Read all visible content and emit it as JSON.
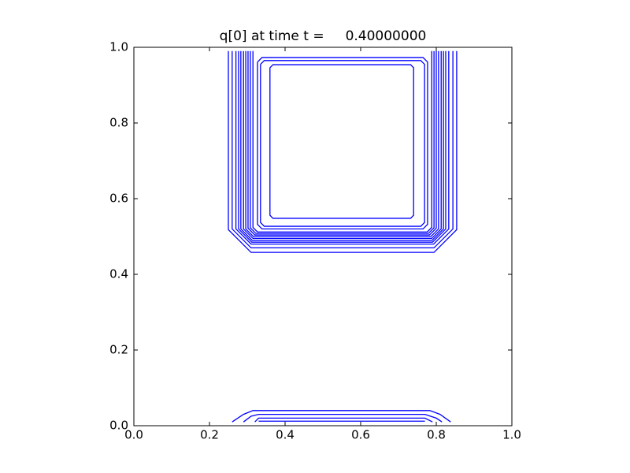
{
  "chart_data": {
    "type": "contour",
    "title": "q[0] at time t =     0.40000000",
    "xlim": [
      0,
      1
    ],
    "ylim": [
      0,
      1
    ],
    "xticks": [
      {
        "value": 0,
        "label": "0.0"
      },
      0.2,
      0.4,
      0.6,
      0.8,
      {
        "value": 1,
        "label": "1.0"
      }
    ],
    "yticks": [
      {
        "value": 0,
        "label": "0.0"
      },
      0.2,
      0.4,
      0.6,
      0.8,
      {
        "value": 1,
        "label": "1.0"
      }
    ],
    "series": [
      {
        "color": "#0000ff",
        "x": [
          0.25,
          0.25,
          0.31,
          0.794,
          0.854,
          0.854
        ],
        "y": [
          0.99,
          0.518,
          0.458,
          0.458,
          0.518,
          0.99
        ]
      },
      {
        "color": "#0000ff",
        "x": [
          0.26,
          0.26,
          0.31,
          0.794,
          0.844,
          0.844
        ],
        "y": [
          0.99,
          0.52,
          0.47,
          0.47,
          0.52,
          0.99
        ]
      },
      {
        "color": "#0000ff",
        "x": [
          0.27,
          0.27,
          0.31,
          0.793,
          0.833,
          0.833
        ],
        "y": [
          0.99,
          0.52,
          0.48,
          0.48,
          0.52,
          0.99
        ]
      },
      {
        "color": "#0000ff",
        "x": [
          0.277,
          0.277,
          0.312,
          0.79,
          0.825,
          0.825
        ],
        "y": [
          0.99,
          0.52,
          0.485,
          0.485,
          0.52,
          0.99
        ]
      },
      {
        "color": "#0000ff",
        "x": [
          0.283,
          0.283,
          0.313,
          0.789,
          0.819,
          0.819
        ],
        "y": [
          0.99,
          0.52,
          0.49,
          0.49,
          0.52,
          0.99
        ]
      },
      {
        "color": "#0000ff",
        "x": [
          0.29,
          0.29,
          0.315,
          0.788,
          0.813,
          0.813
        ],
        "y": [
          0.99,
          0.52,
          0.495,
          0.495,
          0.52,
          0.99
        ]
      },
      {
        "color": "#0000ff",
        "x": [
          0.296,
          0.296,
          0.316,
          0.786,
          0.806,
          0.806
        ],
        "y": [
          0.99,
          0.52,
          0.5,
          0.5,
          0.52,
          0.99
        ]
      },
      {
        "color": "#0000ff",
        "x": [
          0.302,
          0.302,
          0.32,
          0.782,
          0.8,
          0.8
        ],
        "y": [
          0.99,
          0.522,
          0.504,
          0.504,
          0.522,
          0.99
        ]
      },
      {
        "color": "#0000ff",
        "x": [
          0.308,
          0.308,
          0.323,
          0.779,
          0.794,
          0.794
        ],
        "y": [
          0.99,
          0.523,
          0.508,
          0.508,
          0.523,
          0.99
        ]
      },
      {
        "color": "#0000ff",
        "x": [
          0.315,
          0.315,
          0.327,
          0.776,
          0.788,
          0.788
        ],
        "y": [
          0.99,
          0.524,
          0.512,
          0.512,
          0.524,
          0.99
        ]
      },
      {
        "color": "#0000ff",
        "x": [
          0.327,
          0.327,
          0.339,
          0.765,
          0.777,
          0.777,
          0.765,
          0.339,
          0.327
        ],
        "y": [
          0.961,
          0.532,
          0.52,
          0.52,
          0.532,
          0.961,
          0.973,
          0.973,
          0.961
        ]
      },
      {
        "color": "#0000ff",
        "x": [
          0.335,
          0.335,
          0.345,
          0.759,
          0.769,
          0.769,
          0.759,
          0.345,
          0.335
        ],
        "y": [
          0.955,
          0.537,
          0.527,
          0.527,
          0.537,
          0.955,
          0.965,
          0.965,
          0.955
        ]
      },
      {
        "color": "#0000ff",
        "x": [
          0.36,
          0.36,
          0.368,
          0.732,
          0.74,
          0.74,
          0.732,
          0.368,
          0.36
        ],
        "y": [
          0.946,
          0.556,
          0.548,
          0.548,
          0.556,
          0.946,
          0.954,
          0.954,
          0.946
        ]
      },
      {
        "color": "#0000ff",
        "x": [
          0.26,
          0.29,
          0.315,
          0.783,
          0.81,
          0.838
        ],
        "y": [
          0.01,
          0.03,
          0.04,
          0.04,
          0.03,
          0.01
        ]
      },
      {
        "color": "#0000ff",
        "x": [
          0.29,
          0.31,
          0.33,
          0.77,
          0.8,
          0.815
        ],
        "y": [
          0.01,
          0.025,
          0.03,
          0.03,
          0.02,
          0.01
        ]
      },
      {
        "color": "#0000ff",
        "x": [
          0.32,
          0.33,
          0.77,
          0.79
        ],
        "y": [
          0.01,
          0.02,
          0.02,
          0.01
        ]
      },
      {
        "color": "#0000ff",
        "x": [
          0.33,
          0.77
        ],
        "y": [
          0.012,
          0.012
        ]
      }
    ]
  }
}
